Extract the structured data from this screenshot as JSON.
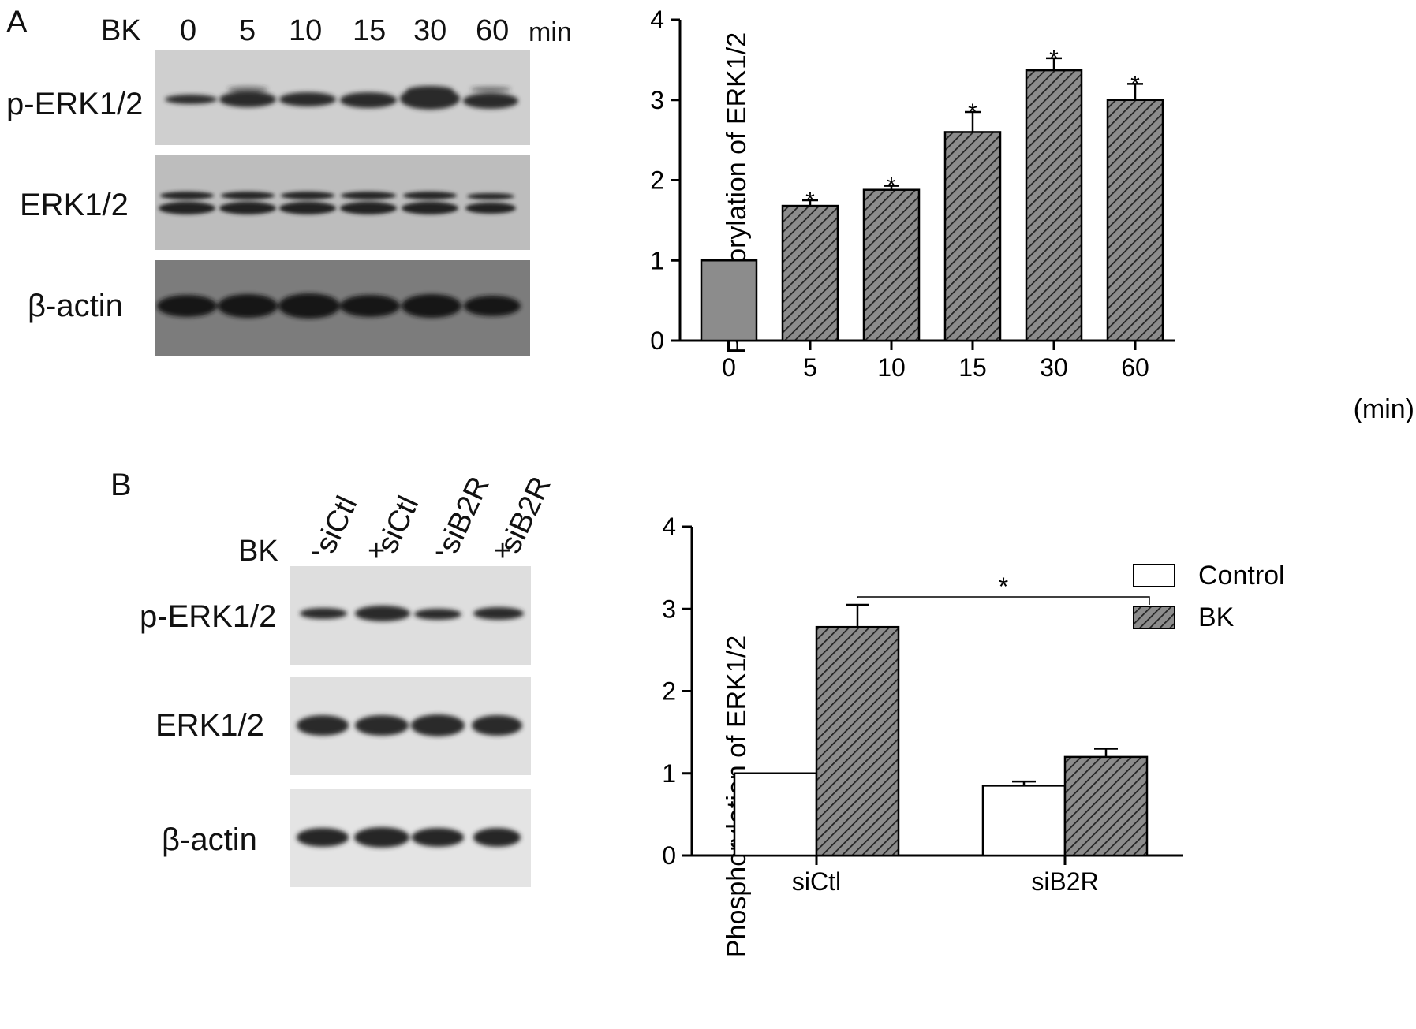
{
  "panel_a": {
    "letter": "A",
    "treatment_label": "BK",
    "time_labels": [
      "0",
      "5",
      "10",
      "15",
      "30",
      "60"
    ],
    "time_unit": "min",
    "blot_rows": [
      "p-ERK1/2",
      "ERK1/2",
      "β-actin"
    ]
  },
  "panel_b": {
    "letter": "B",
    "lane_labels": [
      "siCtl",
      "siCtl",
      "siB2R",
      "siB2R"
    ],
    "treatment_label": "BK",
    "treatment_signs": [
      "-",
      "+",
      "-",
      "+"
    ],
    "blot_rows": [
      "p-ERK1/2",
      "ERK1/2",
      "β-actin"
    ]
  },
  "chart_data": [
    {
      "type": "bar",
      "ylabel": "Phosphorylation of ERK1/2",
      "xlabel": "(min)",
      "categories": [
        "0",
        "5",
        "10",
        "15",
        "30",
        "60"
      ],
      "values": [
        1.0,
        1.68,
        1.88,
        2.6,
        3.37,
        3.0
      ],
      "errors": [
        0.0,
        0.07,
        0.05,
        0.25,
        0.15,
        0.2
      ],
      "significance": [
        "",
        "*",
        "*",
        "*",
        "*",
        "*"
      ],
      "ylim": [
        0,
        4
      ],
      "yticks": [
        "0",
        "1",
        "2",
        "3",
        "4"
      ],
      "pattern": "diagonal-hatch",
      "legend": "none"
    },
    {
      "type": "bar",
      "ylabel": "Phosphorylation of ERK1/2",
      "xlabel": "",
      "categories": [
        "siCtl",
        "siB2R"
      ],
      "series": [
        {
          "name": "Control",
          "values": [
            1.0,
            0.85
          ],
          "errors": [
            0.0,
            0.05
          ],
          "fill": "white"
        },
        {
          "name": "BK",
          "values": [
            2.78,
            1.2
          ],
          "errors": [
            0.27,
            0.1
          ],
          "fill": "hatched"
        }
      ],
      "comparison": {
        "between": [
          "siCtl BK",
          "siB2R BK"
        ],
        "label": "*"
      },
      "ylim": [
        0,
        4
      ],
      "yticks": [
        "0",
        "1",
        "2",
        "3",
        "4"
      ],
      "legend": "top-right"
    }
  ]
}
